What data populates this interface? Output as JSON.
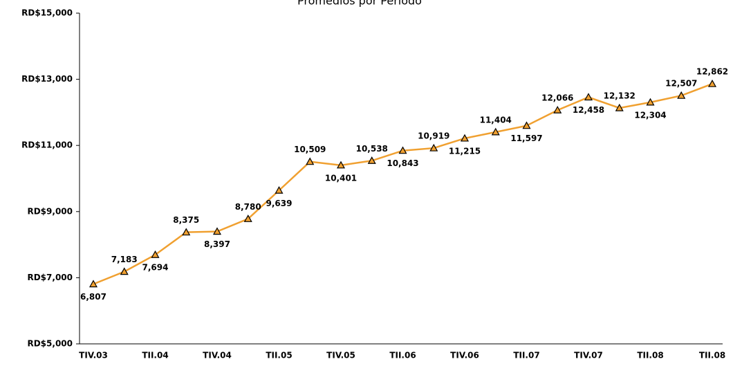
{
  "chart_data": {
    "type": "line",
    "title": "Promedios por Periodo",
    "categories": [
      "TIV.03",
      null,
      "TII.04",
      null,
      "TIV.04",
      null,
      "TII.05",
      null,
      "TIV.05",
      null,
      "TII.06",
      null,
      "TIV.06",
      null,
      "TII.07",
      null,
      "TIV.07",
      null,
      "TII.08",
      null,
      "TII.08"
    ],
    "series": [
      {
        "color": "#f0a030",
        "values": [
          6807,
          7183,
          7694,
          8375,
          8397,
          8780,
          9639,
          10509,
          10401,
          10538,
          10843,
          10919,
          11215,
          11404,
          11597,
          12066,
          12458,
          12132,
          12304,
          12507,
          12862
        ],
        "value_labels": [
          "6,807",
          "7,183",
          "7,694",
          "8,375",
          "8,397",
          "8,780",
          "9,639",
          "10,509",
          "10,401",
          "10,538",
          "10,843",
          "10,919",
          "11,215",
          "11,404",
          "11,597",
          "12,066",
          "12,458",
          "12,132",
          "12,304",
          "12,507",
          "12,862"
        ]
      }
    ],
    "ylim": [
      5000,
      15000
    ],
    "yticks": [
      {
        "value": 5000,
        "label": "RD$5,000"
      },
      {
        "value": 7000,
        "label": "RD$7,000"
      },
      {
        "value": 9000,
        "label": "RD$9,000"
      },
      {
        "value": 11000,
        "label": "RD$11,000"
      },
      {
        "value": 13000,
        "label": "RD$13,000"
      },
      {
        "value": 15000,
        "label": "RD$15,000"
      }
    ],
    "grid": false
  }
}
